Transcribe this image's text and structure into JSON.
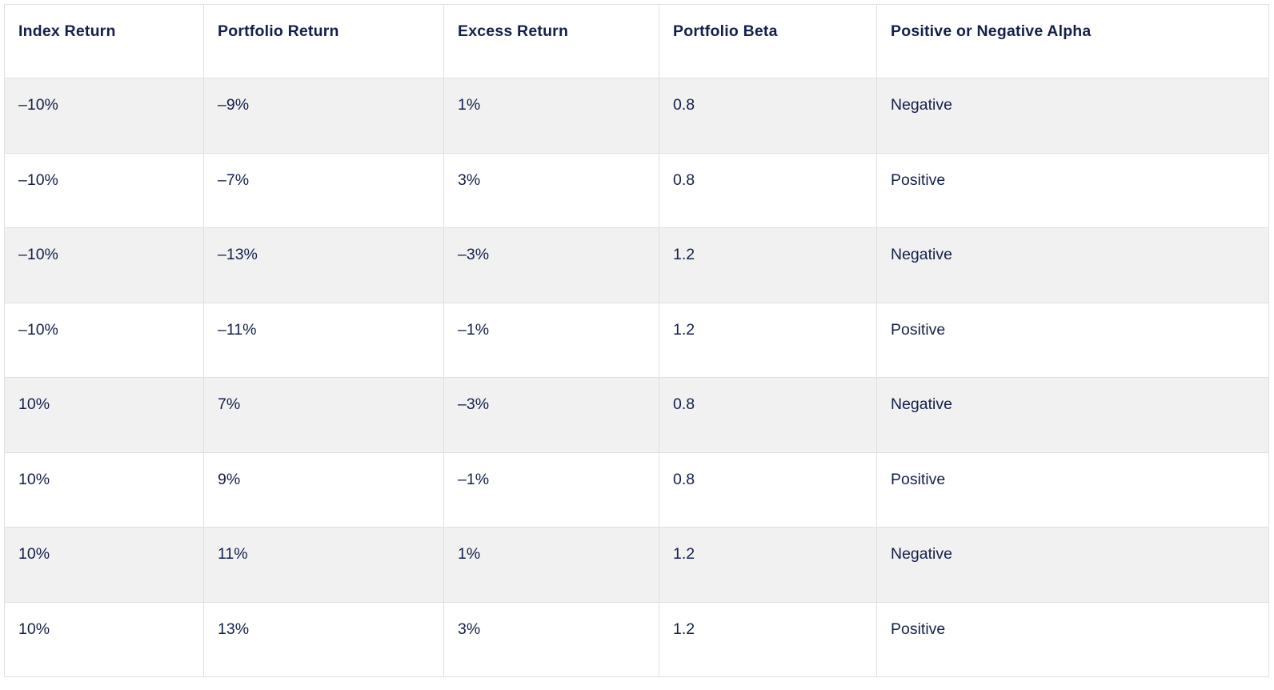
{
  "colors": {
    "text_navy": "#13204a",
    "row_stripe_gray": "#f1f1f2",
    "row_white": "#ffffff",
    "border_gray": "#e0e0e0"
  },
  "chart_data": {
    "type": "table",
    "title": "",
    "columns": [
      "Index Return",
      "Portfolio Return",
      "Excess Return",
      "Portfolio Beta",
      "Positive or Negative Alpha"
    ],
    "rows": [
      [
        "–10%",
        "–9%",
        "1%",
        "0.8",
        "Negative"
      ],
      [
        "–10%",
        "–7%",
        "3%",
        "0.8",
        "Positive"
      ],
      [
        "–10%",
        "–13%",
        "–3%",
        "1.2",
        "Negative"
      ],
      [
        "–10%",
        "–11%",
        "–1%",
        "1.2",
        "Positive"
      ],
      [
        "10%",
        "7%",
        "–3%",
        "0.8",
        "Negative"
      ],
      [
        "10%",
        "9%",
        "–1%",
        "0.8",
        "Positive"
      ],
      [
        "10%",
        "11%",
        "1%",
        "1.2",
        "Negative"
      ],
      [
        "10%",
        "13%",
        "3%",
        "1.2",
        "Positive"
      ]
    ]
  }
}
